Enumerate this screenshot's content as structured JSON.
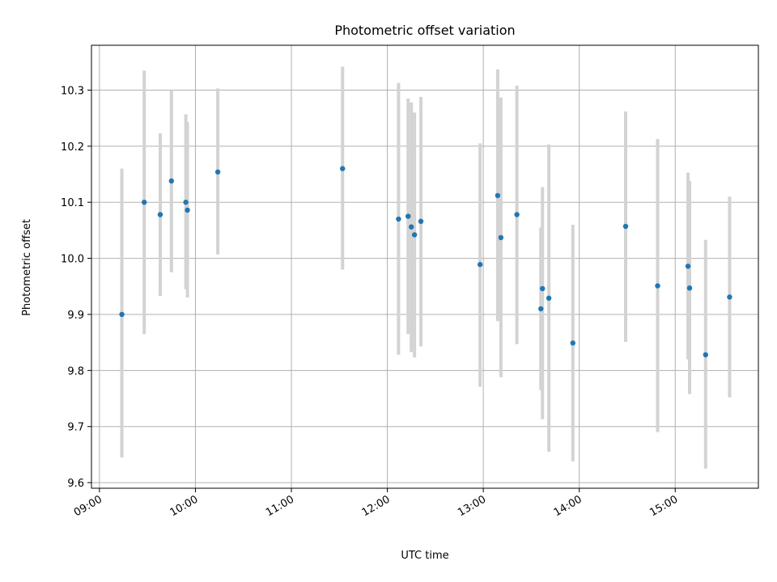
{
  "chart_data": {
    "type": "scatter",
    "title": "Photometric offset variation",
    "xlabel": "UTC time",
    "ylabel": "Photometric offset",
    "x_ticks": [
      "09:00",
      "10:00",
      "11:00",
      "12:00",
      "13:00",
      "14:00",
      "15:00"
    ],
    "y_ticks": [
      "9.6",
      "9.7",
      "9.8",
      "9.9",
      "10.0",
      "10.1",
      "10.2",
      "10.3"
    ],
    "xlim": [
      "08:55",
      "15:52"
    ],
    "ylim": [
      9.59,
      10.38
    ],
    "grid": true,
    "colors": {
      "point": "#1f77b4",
      "errorbar": "#d3d3d3",
      "grid": "#b0b0b0"
    },
    "points": [
      {
        "x": "09:14",
        "y": 9.9,
        "err_low": 9.645,
        "err_high": 10.16
      },
      {
        "x": "09:28",
        "y": 10.1,
        "err_low": 9.865,
        "err_high": 10.335
      },
      {
        "x": "09:38",
        "y": 10.078,
        "err_low": 9.933,
        "err_high": 10.223
      },
      {
        "x": "09:45",
        "y": 10.138,
        "err_low": 9.975,
        "err_high": 10.3
      },
      {
        "x": "09:54",
        "y": 10.1,
        "err_low": 9.945,
        "err_high": 10.257
      },
      {
        "x": "09:55",
        "y": 10.086,
        "err_low": 9.93,
        "err_high": 10.243
      },
      {
        "x": "10:14",
        "y": 10.154,
        "err_low": 10.007,
        "err_high": 10.303
      },
      {
        "x": "11:32",
        "y": 10.16,
        "err_low": 9.98,
        "err_high": 10.342
      },
      {
        "x": "12:07",
        "y": 10.07,
        "err_low": 9.828,
        "err_high": 10.313
      },
      {
        "x": "12:13",
        "y": 10.075,
        "err_low": 9.865,
        "err_high": 10.285
      },
      {
        "x": "12:15",
        "y": 10.056,
        "err_low": 9.833,
        "err_high": 10.278
      },
      {
        "x": "12:17",
        "y": 10.042,
        "err_low": 9.823,
        "err_high": 10.26
      },
      {
        "x": "12:21",
        "y": 10.066,
        "err_low": 9.843,
        "err_high": 10.288
      },
      {
        "x": "12:58",
        "y": 9.989,
        "err_low": 9.771,
        "err_high": 10.205
      },
      {
        "x": "13:09",
        "y": 10.112,
        "err_low": 9.888,
        "err_high": 10.337
      },
      {
        "x": "13:11",
        "y": 10.037,
        "err_low": 9.788,
        "err_high": 10.287
      },
      {
        "x": "13:21",
        "y": 10.078,
        "err_low": 9.847,
        "err_high": 10.308
      },
      {
        "x": "13:36",
        "y": 9.91,
        "err_low": 9.765,
        "err_high": 10.055
      },
      {
        "x": "13:37",
        "y": 9.946,
        "err_low": 9.713,
        "err_high": 10.127
      },
      {
        "x": "13:41",
        "y": 9.929,
        "err_low": 9.655,
        "err_high": 10.203
      },
      {
        "x": "13:56",
        "y": 9.849,
        "err_low": 9.638,
        "err_high": 10.06
      },
      {
        "x": "14:29",
        "y": 10.057,
        "err_low": 9.851,
        "err_high": 10.262
      },
      {
        "x": "14:49",
        "y": 9.951,
        "err_low": 9.69,
        "err_high": 10.213
      },
      {
        "x": "15:08",
        "y": 9.986,
        "err_low": 9.82,
        "err_high": 10.153
      },
      {
        "x": "15:09",
        "y": 9.947,
        "err_low": 9.758,
        "err_high": 10.138
      },
      {
        "x": "15:19",
        "y": 9.828,
        "err_low": 9.625,
        "err_high": 10.033
      },
      {
        "x": "15:34",
        "y": 9.931,
        "err_low": 9.752,
        "err_high": 10.11
      }
    ]
  }
}
